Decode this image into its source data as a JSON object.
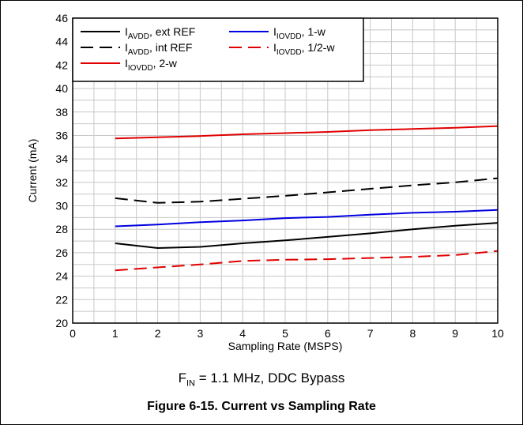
{
  "chart_data": {
    "type": "line",
    "xlabel": "Sampling Rate (MSPS)",
    "ylabel": "Current (mA)",
    "xlim": [
      0,
      10
    ],
    "ylim": [
      20,
      46
    ],
    "x_ticks": [
      0,
      1,
      2,
      3,
      4,
      5,
      6,
      7,
      8,
      9,
      10
    ],
    "y_ticks": [
      20,
      22,
      24,
      26,
      28,
      30,
      32,
      34,
      36,
      38,
      40,
      42,
      44,
      46
    ],
    "grid": true,
    "legend_position": "top-left",
    "series": [
      {
        "name_main": "I",
        "name_sub": "AVDD",
        "name_suffix": ", ext REF",
        "color": "#000000",
        "style": "solid",
        "x": [
          1,
          2,
          3,
          4,
          5,
          6,
          7,
          8,
          9,
          10
        ],
        "values": [
          26.8,
          26.4,
          26.5,
          26.8,
          27.05,
          27.35,
          27.65,
          28.0,
          28.3,
          28.55
        ]
      },
      {
        "name_main": "I",
        "name_sub": "AVDD",
        "name_suffix": ", int REF",
        "color": "#000000",
        "style": "dashed",
        "x": [
          1,
          2,
          3,
          4,
          5,
          6,
          7,
          8,
          9,
          10
        ],
        "values": [
          30.65,
          30.25,
          30.35,
          30.6,
          30.85,
          31.15,
          31.45,
          31.75,
          32.0,
          32.35
        ]
      },
      {
        "name_main": "I",
        "name_sub": "IOVDD",
        "name_suffix": ", 2-w",
        "color": "#e00000",
        "style": "solid",
        "x": [
          1,
          2,
          3,
          4,
          5,
          6,
          7,
          8,
          9,
          10
        ],
        "values": [
          35.75,
          35.85,
          35.95,
          36.1,
          36.2,
          36.3,
          36.45,
          36.55,
          36.65,
          36.8
        ]
      },
      {
        "name_main": "I",
        "name_sub": "IOVDD",
        "name_suffix": ", 1-w",
        "color": "#0000e0",
        "style": "solid",
        "x": [
          1,
          2,
          3,
          4,
          5,
          6,
          7,
          8,
          9,
          10
        ],
        "values": [
          28.25,
          28.4,
          28.6,
          28.75,
          28.95,
          29.05,
          29.25,
          29.4,
          29.5,
          29.65
        ]
      },
      {
        "name_main": "I",
        "name_sub": "IOVDD",
        "name_suffix": ", 1/2-w",
        "color": "#e00000",
        "style": "dashed",
        "x": [
          1,
          2,
          3,
          4,
          5,
          6,
          7,
          8,
          9,
          10
        ],
        "values": [
          24.5,
          24.75,
          25.0,
          25.3,
          25.4,
          25.45,
          25.55,
          25.65,
          25.8,
          26.15
        ]
      }
    ]
  },
  "condition": {
    "main": "F",
    "sub": "IN",
    "rest": " = 1.1 MHz, DDC Bypass"
  },
  "caption": "Figure 6-15. Current vs Sampling Rate"
}
